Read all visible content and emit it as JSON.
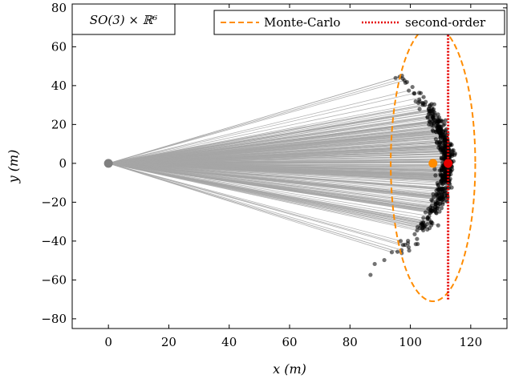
{
  "chart_data": {
    "type": "scatter",
    "inset_label": "SO(3) × ℝ⁶",
    "xlabel": "x (m)",
    "ylabel": "y (m)",
    "xlim": [
      -12,
      132
    ],
    "ylim": [
      -85,
      82
    ],
    "x_ticks": [
      0,
      20,
      40,
      60,
      80,
      100,
      120
    ],
    "y_ticks": [
      -80,
      -60,
      -40,
      -20,
      0,
      20,
      40,
      60,
      80
    ],
    "x_tick_labels": [
      "0",
      "20",
      "40",
      "60",
      "80",
      "100",
      "120"
    ],
    "y_tick_labels": [
      "−80",
      "−60",
      "−40",
      "−20",
      "0",
      "20",
      "40",
      "60",
      "80"
    ],
    "legend": {
      "position": "top-right",
      "entries": [
        {
          "label": "Monte-Carlo",
          "style": "dashed",
          "color": "#ff8c00"
        },
        {
          "label": "second-order",
          "style": "dotted",
          "color": "#e60000"
        }
      ]
    },
    "start_point": {
      "x": 0,
      "y": 0,
      "color": "#808080"
    },
    "sample_cloud": {
      "count": 500,
      "arc_center": {
        "x": 40,
        "y": 0
      },
      "arc_radius": 72,
      "max_angle_deg": 52,
      "color": "#000000",
      "ray_color": "#a6a6a6"
    },
    "monte_carlo_mean": {
      "x": 107.5,
      "y": 0,
      "color": "#ff8c00"
    },
    "monte_carlo_ellipse": {
      "cx": 107.5,
      "cy": 0,
      "rx": 14,
      "ry": 71,
      "color": "#ff8c00"
    },
    "second_order_mean": {
      "x": 112.5,
      "y": 0,
      "color": "#e60000"
    },
    "second_order_bounds": {
      "x": 112.5,
      "y_min": -70,
      "y_max": 69,
      "color": "#e60000"
    }
  }
}
